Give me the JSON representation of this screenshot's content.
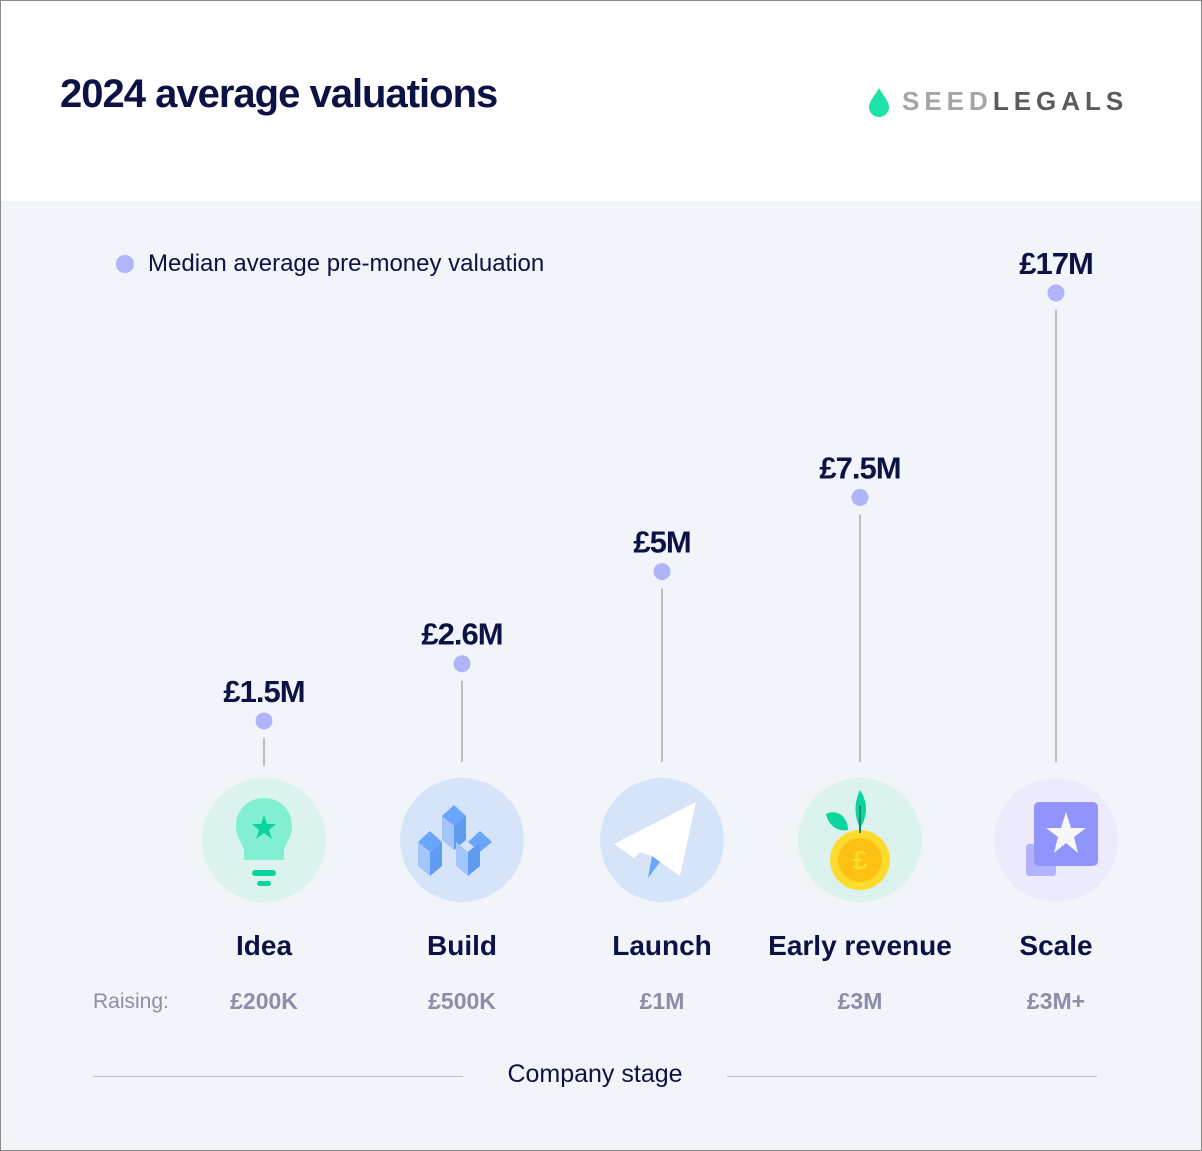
{
  "header": {
    "title_year": "2024",
    "title_rest": "average valuations",
    "logo_seed": "SEED",
    "logo_legals": "LEGALS"
  },
  "colors": {
    "navy": "#0d1245",
    "accent": "#1ed8a0",
    "dot": "#b0b4f8",
    "stem": "#b9bcc9"
  },
  "chart_data": {
    "type": "scatter",
    "title": "2024 average valuations",
    "legend": {
      "label": "Median average pre-money valuation",
      "placement": "top-left"
    },
    "xlabel": "Company stage",
    "raising_label": "Raising:",
    "categories": [
      "Idea",
      "Build",
      "Launch",
      "Early revenue",
      "Scale"
    ],
    "raising": [
      "£200K",
      "£500K",
      "£1M",
      "£3M",
      "£3M+"
    ],
    "values": [
      1.5,
      2.6,
      5,
      7.5,
      17
    ],
    "value_labels": [
      "£1.5M",
      "£2.6M",
      "£5M",
      "£7.5M",
      "£17M"
    ],
    "unit": "£M",
    "icons": [
      "lightbulb-icon",
      "cubes-icon",
      "paper-plane-icon",
      "coin-plant-icon",
      "star-card-icon"
    ]
  }
}
